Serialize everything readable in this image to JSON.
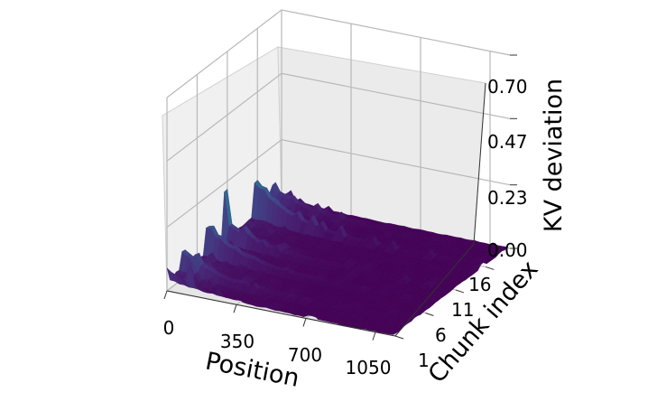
{
  "chart_data": {
    "type": "surface",
    "title": "",
    "xlabel": "Position",
    "ylabel": "Chunk index",
    "zlabel": "KV deviation",
    "x_ticks": [
      "0",
      "350",
      "700",
      "1050"
    ],
    "y_ticks": [
      "1",
      "6",
      "11",
      "16"
    ],
    "z_ticks": [
      "0.00",
      "0.23",
      "0.47",
      "0.70"
    ],
    "xlim": [
      0,
      1150
    ],
    "ylim": [
      1,
      20
    ],
    "zlim": [
      0,
      0.7
    ],
    "colormap": "viridis",
    "grid": true,
    "peak_chunks": [
      {
        "chunk": 1,
        "max_deviation": 0.22
      },
      {
        "chunk": 4,
        "max_deviation": 0.28
      },
      {
        "chunk": 8,
        "max_deviation": 0.33
      },
      {
        "chunk": 11,
        "max_deviation": 0.25
      },
      {
        "chunk": 16,
        "max_deviation": 0.42
      },
      {
        "chunk": 19,
        "max_deviation": 0.2
      }
    ]
  }
}
